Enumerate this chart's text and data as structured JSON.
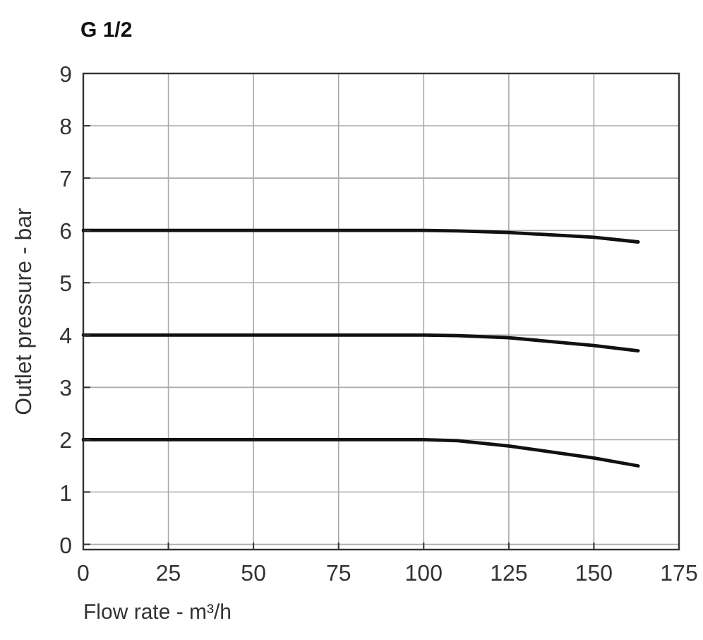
{
  "chart_data": {
    "type": "line",
    "title": "G 1/2",
    "xlabel": "Flow rate - m³/h",
    "ylabel": "Outlet pressure - bar",
    "xlim": [
      0,
      175
    ],
    "xticks": [
      0,
      25,
      50,
      75,
      100,
      125,
      150,
      175
    ],
    "ylim": [
      -0.1,
      9
    ],
    "yticks": [
      0,
      1,
      2,
      3,
      4,
      5,
      6,
      7,
      8,
      9
    ],
    "grid": true,
    "marker": "none",
    "line_style": "solid",
    "series": [
      {
        "color": "#111111",
        "x": [
          0,
          100,
          110,
          125,
          150,
          163
        ],
        "values": [
          6,
          6,
          5.99,
          5.96,
          5.87,
          5.78
        ]
      },
      {
        "color": "#111111",
        "x": [
          0,
          100,
          110,
          125,
          150,
          163
        ],
        "values": [
          4,
          4,
          3.99,
          3.95,
          3.8,
          3.7
        ]
      },
      {
        "color": "#111111",
        "x": [
          0,
          90,
          100,
          110,
          125,
          150,
          163
        ],
        "values": [
          2,
          2,
          2,
          1.98,
          1.88,
          1.65,
          1.5
        ]
      }
    ]
  }
}
